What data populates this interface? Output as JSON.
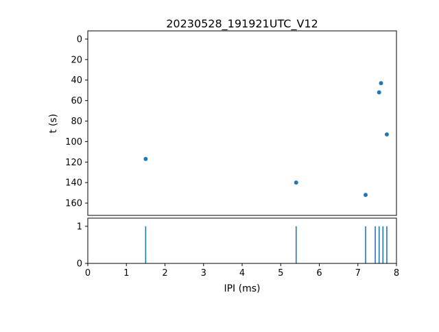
{
  "figure": {
    "title": "20230528_191921UTC_V12",
    "xlabel": "IPI (ms)",
    "ylabel": "t (s)"
  },
  "chart_data": {
    "type": "scatter",
    "title": "20230528_191921UTC_V12",
    "xlabel": "IPI (ms)",
    "marker_color": "#1f77b4",
    "xlim": [
      0,
      8
    ],
    "xticks": [
      0,
      1,
      2,
      3,
      4,
      5,
      6,
      7,
      8
    ],
    "top_panel": {
      "ylabel": "t (s)",
      "ylim_top": -8,
      "ylim_bottom": 172,
      "y_inverted": true,
      "yticks": [
        0,
        20,
        40,
        60,
        80,
        100,
        120,
        140,
        160
      ],
      "points": [
        {
          "x": 1.5,
          "t": 117
        },
        {
          "x": 5.4,
          "t": 140
        },
        {
          "x": 7.2,
          "t": 152
        },
        {
          "x": 7.55,
          "t": 52
        },
        {
          "x": 7.6,
          "t": 43
        },
        {
          "x": 7.75,
          "t": 93
        }
      ]
    },
    "bottom_panel": {
      "ylim": [
        0,
        1.22
      ],
      "yticks": [
        0,
        1
      ],
      "spike_height": 1,
      "spikes": [
        1.5,
        5.4,
        7.2,
        7.45,
        7.55,
        7.65,
        7.75
      ]
    }
  }
}
